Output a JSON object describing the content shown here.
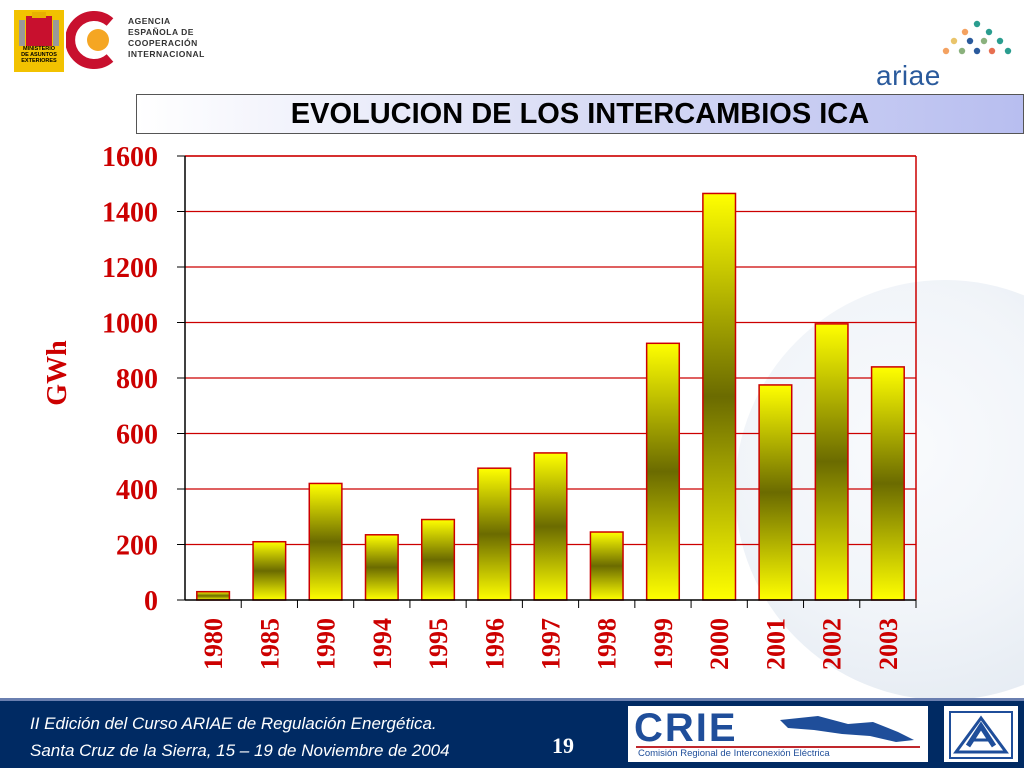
{
  "header": {
    "agency_lines": [
      "AGENCIA",
      "ESPAÑOLA DE",
      "COOPERACIÓN",
      "INTERNACIONAL"
    ],
    "ministry_lines": [
      "MINISTERIO",
      "DE ASUNTOS",
      "EXTERIORES"
    ],
    "ariae_label": "ariae"
  },
  "title": "EVOLUCION DE LOS INTERCAMBIOS ICA",
  "chart_data": {
    "type": "bar",
    "title": "EVOLUCION DE LOS INTERCAMBIOS ICA",
    "ylabel": "GWh",
    "xlabel": "",
    "ylim": [
      0,
      1600
    ],
    "yticks": [
      0,
      200,
      400,
      600,
      800,
      1000,
      1200,
      1400,
      1600
    ],
    "categories": [
      "1980",
      "1985",
      "1990",
      "1994",
      "1995",
      "1996",
      "1997",
      "1998",
      "1999",
      "2000",
      "2001",
      "2002",
      "2003"
    ],
    "values": [
      30,
      210,
      420,
      235,
      290,
      475,
      530,
      245,
      925,
      1465,
      775,
      995,
      840
    ],
    "grid": true,
    "colors": {
      "bar_light": "#ffff00",
      "bar_dark": "#6b6b00",
      "grid": "#cc0000",
      "frame": "#cc0000",
      "ylabel": "#cc0000"
    }
  },
  "footer": {
    "line1": "II Edición del Curso ARIAE de Regulación Energética.",
    "line2": "Santa Cruz de la Sierra, 15 – 19  de Noviembre de 2004",
    "page_number": "19",
    "crie_label": "CRIE",
    "crie_subtitle": "Comisión Regional de Interconexión Eléctrica"
  }
}
